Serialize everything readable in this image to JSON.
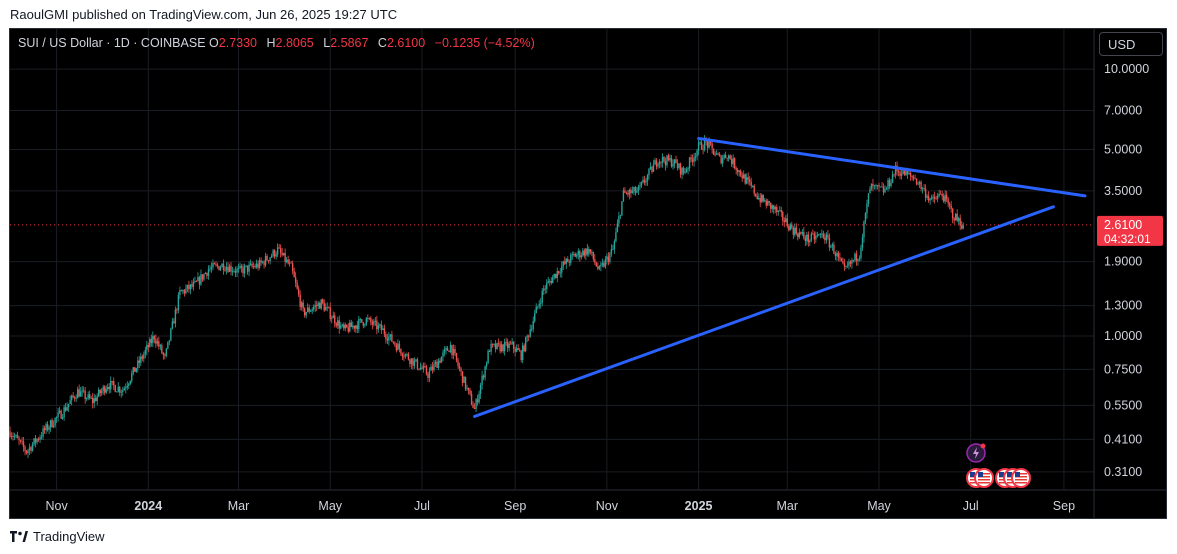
{
  "header": {
    "publisher_text": "RaoulGMI published on TradingView.com, Jun 26, 2025 19:27 UTC"
  },
  "legend": {
    "symbol": "SUI / US Dollar · 1D · COINBASE",
    "open_label": "O",
    "open": "2.7330",
    "high_label": "H",
    "high": "2.8065",
    "low_label": "L",
    "low": "2.5867",
    "close_label": "C",
    "close": "2.6100",
    "change": "−0.1235 (−4.52%)"
  },
  "toolbar": {
    "currency": "USD"
  },
  "footer": {
    "brand": "TradingView"
  },
  "colors": {
    "up": "#26a69a",
    "down": "#ef5350",
    "trendline": "#2962ff",
    "price_tag": "#f23645",
    "background": "#000000"
  },
  "icons": [
    "flash-event-icon",
    "us-flag-icon"
  ],
  "chart_data": {
    "type": "candlestick",
    "scale": "log",
    "y_ticks": [
      "10.0000",
      "7.0000",
      "5.0000",
      "3.5000",
      "2.6100",
      "1.9000",
      "1.3000",
      "1.0000",
      "0.7500",
      "0.5500",
      "0.4100",
      "0.3100"
    ],
    "y_tick_values": [
      10,
      7,
      5,
      3.5,
      1.9,
      1.3,
      1.0,
      0.75,
      0.55,
      0.41,
      0.31
    ],
    "x_ticks": [
      "Nov",
      "2024",
      "Mar",
      "May",
      "Jul",
      "Sep",
      "Nov",
      "2025",
      "Mar",
      "May",
      "Jul",
      "Sep"
    ],
    "x_tick_dates": [
      "2023-11-01",
      "2024-01-01",
      "2024-03-01",
      "2024-05-01",
      "2024-07-01",
      "2024-09-01",
      "2024-11-01",
      "2025-01-01",
      "2025-03-01",
      "2025-05-01",
      "2025-07-01",
      "2025-09-01"
    ],
    "last_price": {
      "value": 2.61,
      "label": "2.6100",
      "countdown": "04:32:01"
    },
    "price_path": [
      [
        "2023-10-01",
        0.44
      ],
      [
        "2023-10-12",
        0.37
      ],
      [
        "2023-10-25",
        0.45
      ],
      [
        "2023-11-05",
        0.52
      ],
      [
        "2023-11-15",
        0.62
      ],
      [
        "2023-11-25",
        0.57
      ],
      [
        "2023-12-05",
        0.66
      ],
      [
        "2023-12-15",
        0.63
      ],
      [
        "2023-12-25",
        0.78
      ],
      [
        "2024-01-05",
        1.0
      ],
      [
        "2024-01-12",
        0.82
      ],
      [
        "2024-01-22",
        1.45
      ],
      [
        "2024-02-01",
        1.55
      ],
      [
        "2024-02-10",
        1.78
      ],
      [
        "2024-02-20",
        1.85
      ],
      [
        "2024-03-01",
        1.75
      ],
      [
        "2024-03-15",
        1.85
      ],
      [
        "2024-03-27",
        2.1
      ],
      [
        "2024-04-05",
        1.8
      ],
      [
        "2024-04-13",
        1.22
      ],
      [
        "2024-04-25",
        1.33
      ],
      [
        "2024-05-10",
        1.05
      ],
      [
        "2024-05-25",
        1.15
      ],
      [
        "2024-06-05",
        1.05
      ],
      [
        "2024-06-20",
        0.85
      ],
      [
        "2024-07-05",
        0.72
      ],
      [
        "2024-07-20",
        0.92
      ],
      [
        "2024-08-05",
        0.53
      ],
      [
        "2024-08-15",
        0.9
      ],
      [
        "2024-08-30",
        0.92
      ],
      [
        "2024-09-05",
        0.85
      ],
      [
        "2024-09-20",
        1.5
      ],
      [
        "2024-10-01",
        1.8
      ],
      [
        "2024-10-10",
        2.0
      ],
      [
        "2024-10-20",
        2.1
      ],
      [
        "2024-10-27",
        1.75
      ],
      [
        "2024-11-05",
        2.1
      ],
      [
        "2024-11-12",
        3.4
      ],
      [
        "2024-11-22",
        3.5
      ],
      [
        "2024-12-05",
        4.6
      ],
      [
        "2024-12-15",
        4.5
      ],
      [
        "2024-12-22",
        4.1
      ],
      [
        "2025-01-01",
        5.1
      ],
      [
        "2025-01-06",
        5.3
      ],
      [
        "2025-01-15",
        4.6
      ],
      [
        "2025-01-20",
        4.8
      ],
      [
        "2025-01-30",
        4.0
      ],
      [
        "2025-02-10",
        3.3
      ],
      [
        "2025-02-20",
        3.0
      ],
      [
        "2025-03-05",
        2.5
      ],
      [
        "2025-03-15",
        2.3
      ],
      [
        "2025-03-25",
        2.4
      ],
      [
        "2025-04-01",
        2.1
      ],
      [
        "2025-04-08",
        1.75
      ],
      [
        "2025-04-18",
        2.05
      ],
      [
        "2025-04-25",
        3.6
      ],
      [
        "2025-05-05",
        3.5
      ],
      [
        "2025-05-12",
        4.2
      ],
      [
        "2025-05-25",
        3.9
      ],
      [
        "2025-06-05",
        3.2
      ],
      [
        "2025-06-12",
        3.4
      ],
      [
        "2025-06-20",
        2.8
      ],
      [
        "2025-06-26",
        2.61
      ]
    ],
    "trendlines": [
      {
        "name": "upper",
        "from": [
          "2025-01-01",
          5.5
        ],
        "to": [
          "2025-09-15",
          3.35
        ]
      },
      {
        "name": "lower",
        "from": [
          "2024-08-05",
          0.5
        ],
        "to": [
          "2025-08-25",
          3.05
        ]
      }
    ]
  }
}
